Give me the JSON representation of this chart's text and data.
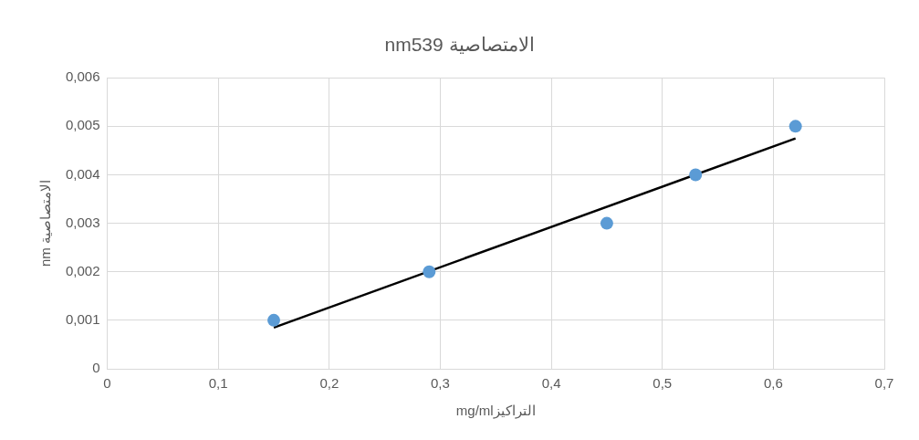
{
  "chart_data": {
    "type": "scatter",
    "title": "nm539 الامتصاصية",
    "xlabel": "mg/mlالتراكيز",
    "ylabel": "nm الامتصاصية",
    "series": [
      {
        "color": "#5b9bd5",
        "marker": "circle",
        "x": [
          0.15,
          0.29,
          0.45,
          0.53,
          0.62
        ],
        "values": [
          0.001,
          0.002,
          0.003,
          0.004,
          0.005
        ]
      },
      {
        "type": "line",
        "color": "#000000",
        "marker": "none",
        "x": [
          0.15,
          0.62
        ],
        "values": [
          0.00085,
          0.00475
        ]
      }
    ],
    "xlim": [
      0,
      0.7
    ],
    "xticks": [
      0,
      {
        "value": 0.1,
        "label": "0,1"
      },
      {
        "value": 0.2,
        "label": "0,2"
      },
      {
        "value": 0.3,
        "label": "0,3"
      },
      {
        "value": 0.4,
        "label": "0,4"
      },
      {
        "value": 0.5,
        "label": "0,5"
      },
      {
        "value": 0.6,
        "label": "0,6"
      },
      {
        "value": 0.7,
        "label": "0,7"
      }
    ],
    "ylim": [
      0,
      0.006
    ],
    "yticks": [
      0,
      {
        "value": 0.001,
        "label": "0,001"
      },
      {
        "value": 0.002,
        "label": "0,002"
      },
      {
        "value": 0.003,
        "label": "0,003"
      },
      {
        "value": 0.004,
        "label": "0,004"
      },
      {
        "value": 0.005,
        "label": "0,005"
      },
      {
        "value": 0.006,
        "label": "0,006"
      }
    ],
    "grid": true,
    "legend": false
  }
}
